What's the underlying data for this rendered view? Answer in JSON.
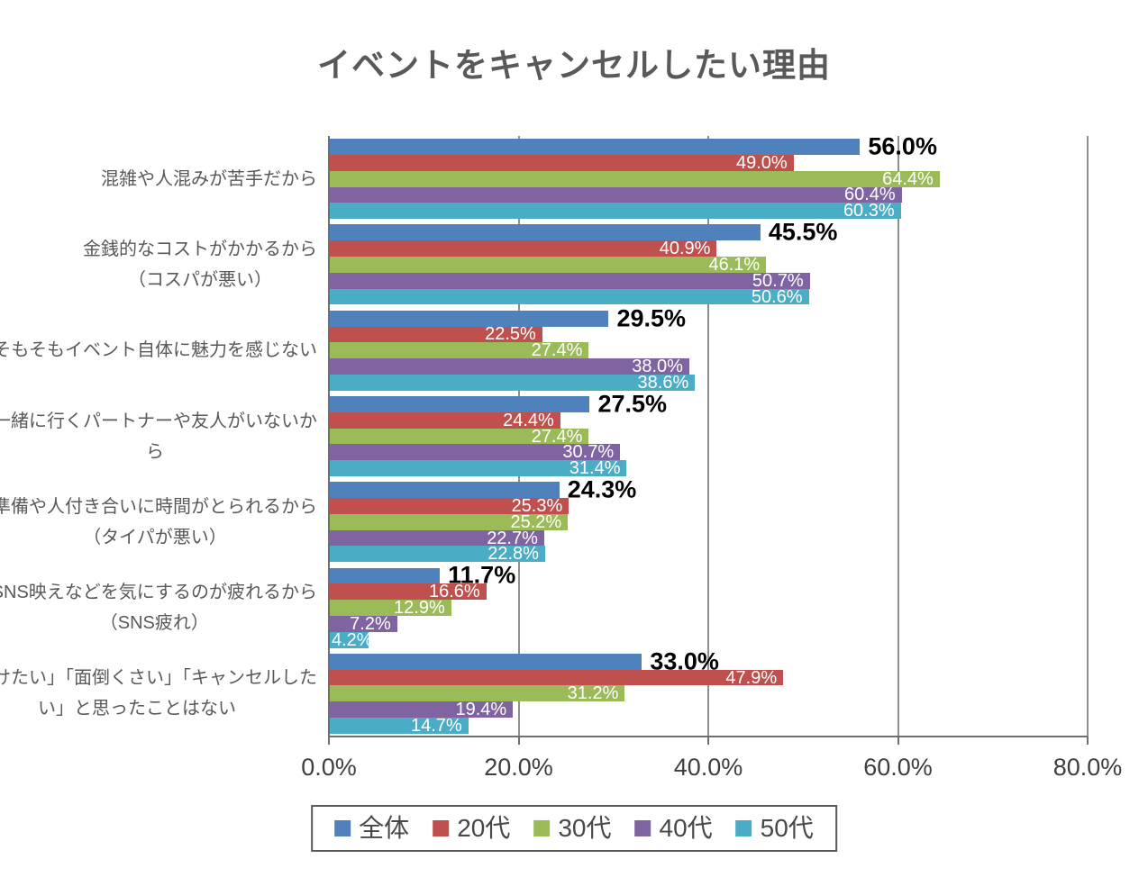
{
  "title": "イベントをキャンセルしたい理由",
  "chart_data": {
    "type": "bar",
    "orientation": "horizontal",
    "title": "イベントをキャンセルしたい理由",
    "categories": [
      "混雑や人混みが苦手だから",
      "金銭的なコストがかかるから\n（コスパが悪い）",
      "そもそもイベント自体に魅力を感じない",
      "一緒に行くパートナーや友人がいないか\nら",
      "準備や人付き合いに時間がとられるから\n（タイパが悪い）",
      "SNS映えなどを気にするのが疲れるから\n（SNS疲れ）",
      "「避けたい」「面倒くさい」「キャンセルした\nい」と思ったことはない"
    ],
    "series": [
      {
        "name": "全体",
        "color": "#4F81BD",
        "values": [
          56.0,
          45.5,
          29.5,
          27.5,
          24.3,
          11.7,
          33.0
        ]
      },
      {
        "name": "20代",
        "color": "#C0504D",
        "values": [
          49.0,
          40.9,
          22.5,
          24.4,
          25.3,
          16.6,
          47.9
        ]
      },
      {
        "name": "30代",
        "color": "#9BBB59",
        "values": [
          64.4,
          46.1,
          27.4,
          27.4,
          25.2,
          12.9,
          31.2
        ]
      },
      {
        "name": "40代",
        "color": "#8064A2",
        "values": [
          60.4,
          50.7,
          38.0,
          30.7,
          22.7,
          7.2,
          19.4
        ]
      },
      {
        "name": "50代",
        "color": "#4BACC6",
        "values": [
          60.3,
          50.6,
          38.6,
          31.4,
          22.8,
          4.2,
          14.7
        ]
      }
    ],
    "data_label_format": "0.0%",
    "x_ticks": [
      "0.0%",
      "20.0%",
      "40.0%",
      "60.0%",
      "80.0%"
    ],
    "xlim": [
      0,
      80
    ],
    "grid": true,
    "legend_position": "bottom",
    "axis_color": "#6f6f6f",
    "gridline_color": "#8e8e8e"
  }
}
